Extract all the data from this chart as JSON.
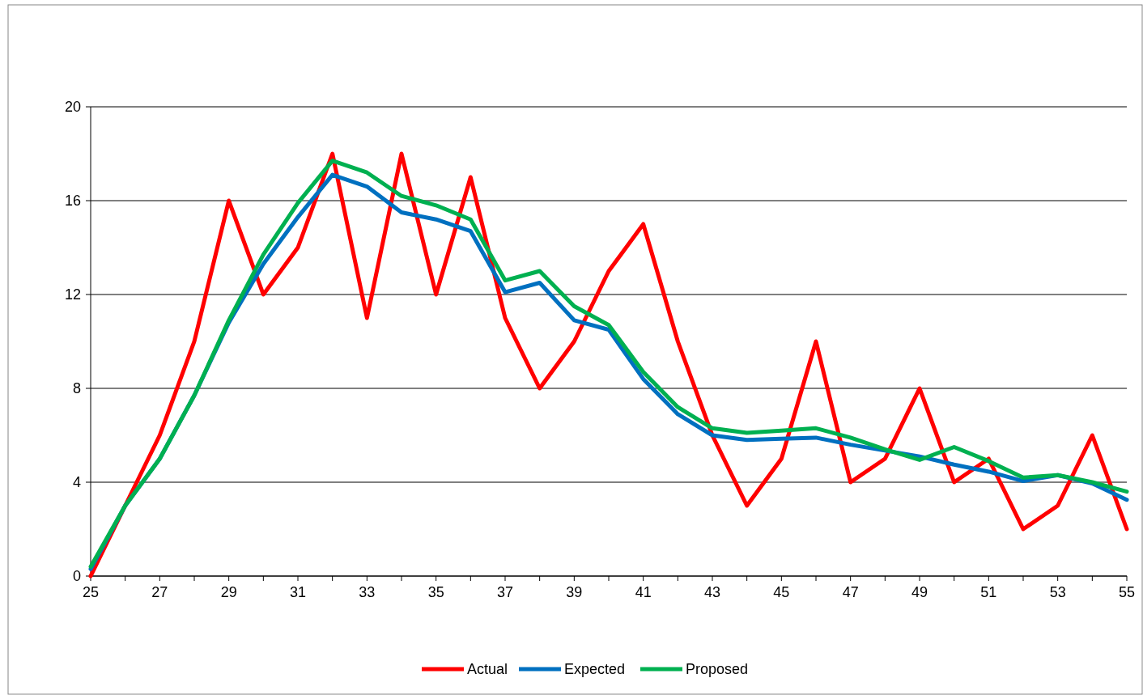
{
  "chart_data": {
    "type": "line",
    "x": [
      25,
      26,
      27,
      28,
      29,
      30,
      31,
      32,
      33,
      34,
      35,
      36,
      37,
      38,
      39,
      40,
      41,
      42,
      43,
      44,
      45,
      46,
      47,
      48,
      49,
      50,
      51,
      52,
      53,
      54,
      55
    ],
    "series": [
      {
        "name": "Actual",
        "color": "#ff0000",
        "values": [
          0,
          3,
          6,
          10,
          16,
          12,
          14,
          18,
          11,
          18,
          12,
          17,
          11,
          8,
          10,
          13,
          15,
          10,
          6,
          3,
          5,
          10,
          4,
          5,
          8,
          4,
          5,
          2,
          3,
          6,
          2
        ]
      },
      {
        "name": "Expected",
        "color": "#0070c0",
        "values": [
          0.3,
          3,
          5,
          7.7,
          10.8,
          13.3,
          15.3,
          17.1,
          16.6,
          15.5,
          15.2,
          14.7,
          12.1,
          12.5,
          10.9,
          10.5,
          8.4,
          6.9,
          6,
          5.8,
          5.85,
          5.9,
          5.6,
          5.35,
          5.1,
          4.75,
          4.45,
          4.05,
          4.3,
          3.95,
          3.25
        ]
      },
      {
        "name": "Proposed",
        "color": "#00b050",
        "values": [
          0.4,
          3,
          5,
          7.7,
          10.9,
          13.7,
          15.9,
          17.7,
          17.2,
          16.2,
          15.8,
          15.2,
          12.6,
          13,
          11.5,
          10.7,
          8.7,
          7.2,
          6.3,
          6.1,
          6.2,
          6.3,
          5.9,
          5.4,
          4.95,
          5.5,
          4.9,
          4.2,
          4.3,
          4,
          3.6
        ]
      }
    ],
    "xlim": [
      25,
      55
    ],
    "xticks": [
      25,
      {
        "value": 26,
        "label": null
      },
      27,
      {
        "value": 28,
        "label": null
      },
      29,
      {
        "value": 30,
        "label": null
      },
      31,
      {
        "value": 32,
        "label": null
      },
      33,
      {
        "value": 34,
        "label": null
      },
      35,
      {
        "value": 36,
        "label": null
      },
      37,
      {
        "value": 38,
        "label": null
      },
      39,
      {
        "value": 40,
        "label": null
      },
      41,
      {
        "value": 42,
        "label": null
      },
      43,
      {
        "value": 44,
        "label": null
      },
      45,
      {
        "value": 46,
        "label": null
      },
      47,
      {
        "value": 48,
        "label": null
      },
      49,
      {
        "value": 50,
        "label": null
      },
      51,
      {
        "value": 52,
        "label": null
      },
      53,
      {
        "value": 54,
        "label": null
      },
      55
    ],
    "ylim": [
      0,
      20
    ],
    "yticks": [
      0,
      4,
      8,
      12,
      16,
      20
    ],
    "grid": "y",
    "legend": "bottom",
    "marker": "none",
    "line_style": "solid"
  }
}
